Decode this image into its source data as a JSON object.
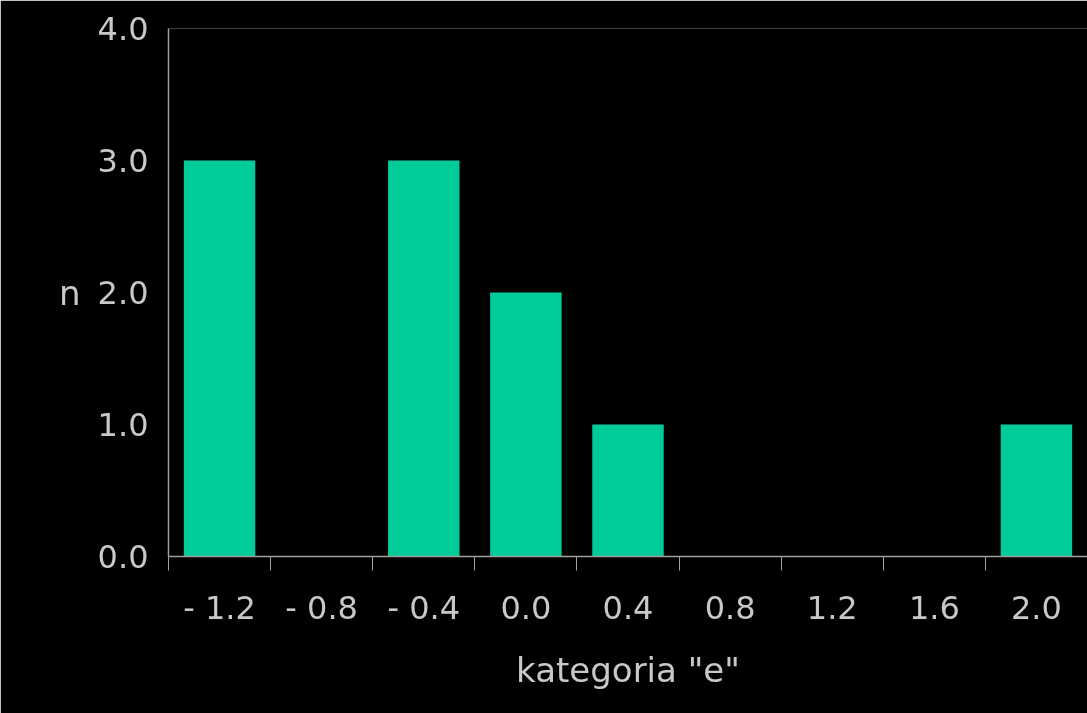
{
  "chart_data": {
    "type": "bar",
    "xlabel": "kategoria \"e\"",
    "ylabel": "n",
    "categories": [
      "- 1.2",
      "- 0.8",
      "- 0.4",
      "0.0",
      "0.4",
      "0.8",
      "1.2",
      "1.6",
      "2.0"
    ],
    "values": [
      3,
      0,
      3,
      2,
      1,
      0,
      0,
      0,
      1
    ],
    "color": "#00cc99",
    "ylim": [
      0,
      4
    ],
    "yticks": [
      {
        "value": 0,
        "label": "0.0"
      },
      {
        "value": 1,
        "label": "1.0"
      },
      {
        "value": 2,
        "label": "2.0"
      },
      {
        "value": 3,
        "label": "3.0"
      },
      {
        "value": 4,
        "label": "4.0"
      }
    ],
    "grid": false
  }
}
